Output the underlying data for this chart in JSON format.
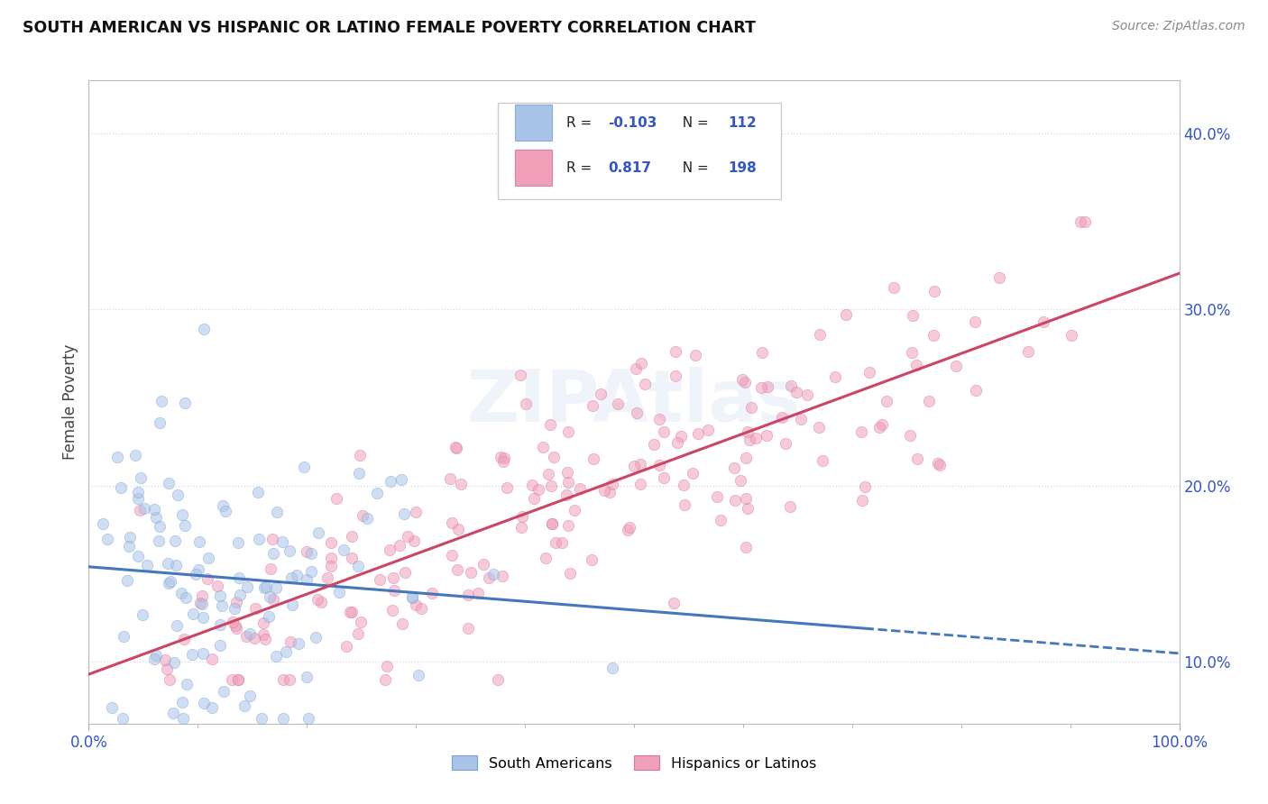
{
  "title": "SOUTH AMERICAN VS HISPANIC OR LATINO FEMALE POVERTY CORRELATION CHART",
  "source": "Source: ZipAtlas.com",
  "ylabel": "Female Poverty",
  "xlim": [
    0.0,
    1.0
  ],
  "ylim": [
    0.065,
    0.43
  ],
  "r_south_american": -0.103,
  "n_south_american": 112,
  "r_hispanic": 0.817,
  "n_hispanic": 198,
  "south_american_color": "#a8c4e8",
  "hispanic_color": "#f0a0b8",
  "sa_edge_color": "#7a9fd0",
  "hisp_edge_color": "#d870a0",
  "regression_line_sa_color": "#4477bb",
  "regression_line_hisp_color": "#cc4466",
  "background_color": "#ffffff",
  "watermark_text": "ZIPAtlas",
  "ytick_positions": [
    0.1,
    0.2,
    0.3,
    0.4
  ],
  "ytick_labels": [
    "10.0%",
    "20.0%",
    "30.0%",
    "40.0%"
  ],
  "grid_color": "#d8d8e8",
  "dot_size": 80,
  "dot_alpha": 0.55,
  "seed": 42,
  "legend_blue": "#3355cc",
  "legend_pink": "#cc3366"
}
